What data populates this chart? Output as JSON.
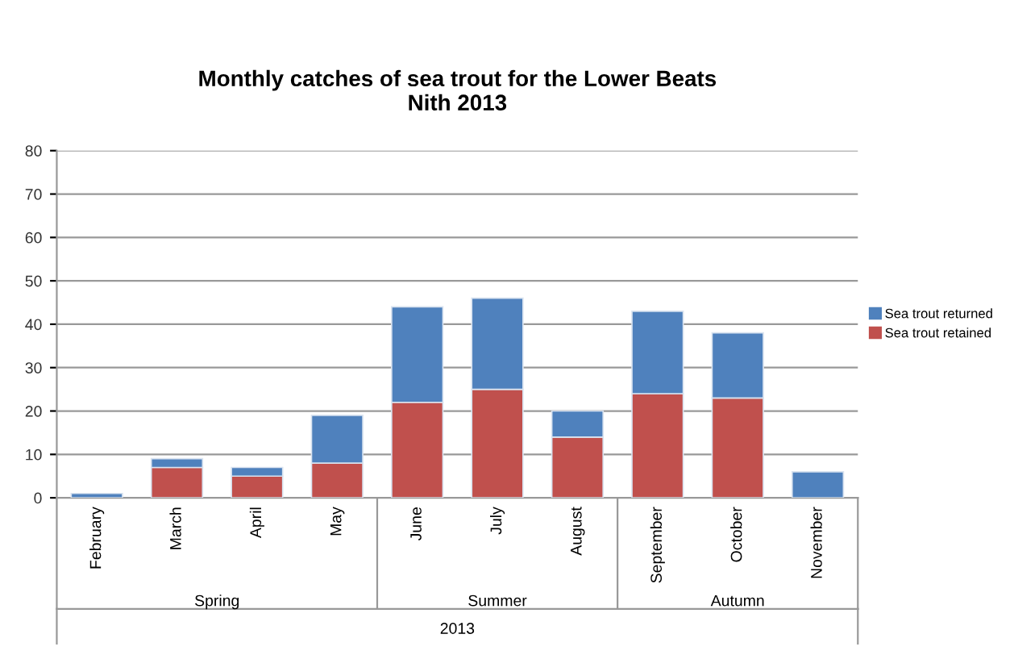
{
  "chart_data": {
    "type": "bar",
    "title": "Monthly catches of sea trout for the Lower Beats\nNith 2013",
    "categories": [
      "February",
      "March",
      "April",
      "May",
      "June",
      "July",
      "August",
      "September",
      "October",
      "November"
    ],
    "series": [
      {
        "name": "Sea trout retained",
        "color": "#c0504d",
        "values": [
          0,
          7,
          5,
          8,
          22,
          25,
          14,
          24,
          23,
          0
        ]
      },
      {
        "name": "Sea trout returned",
        "color": "#4f81bd",
        "values": [
          1,
          2,
          2,
          11,
          22,
          21,
          6,
          19,
          15,
          6
        ]
      }
    ],
    "stacked": true,
    "ylim": [
      0,
      80
    ],
    "yticks": [
      0,
      10,
      20,
      30,
      40,
      50,
      60,
      70,
      80
    ],
    "grid": "y",
    "legend": "right",
    "annotations": [
      "Spring",
      "Summer",
      "Autumn",
      "2013"
    ]
  }
}
